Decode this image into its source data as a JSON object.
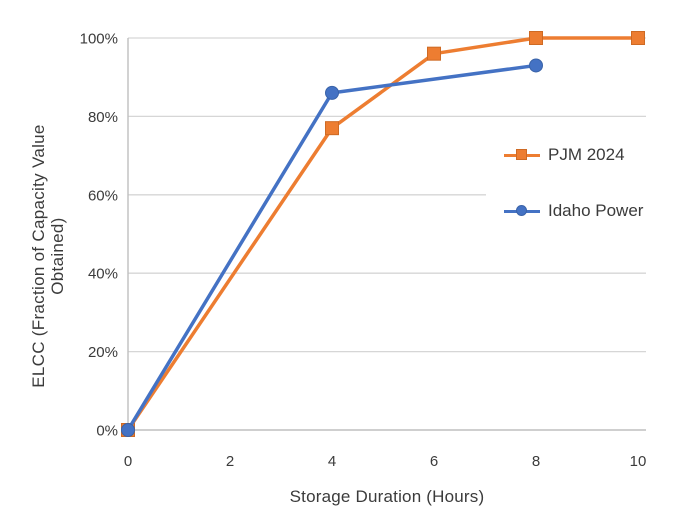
{
  "chart_data": {
    "type": "line",
    "title": "",
    "xlabel": "Storage Duration (Hours)",
    "ylabel": "ELCC (Fraction of Capacity Value Obtained)",
    "xlim": [
      0,
      10
    ],
    "ylim": [
      0,
      100
    ],
    "x_ticks": [
      0,
      2,
      4,
      6,
      8,
      10
    ],
    "y_ticks": {
      "labels": [
        "0%",
        "20%",
        "40%",
        "60%",
        "80%",
        "100%"
      ],
      "values": [
        0,
        20,
        40,
        60,
        80,
        100
      ]
    },
    "grid": "horizontal",
    "legend_position": "inside-right",
    "series": [
      {
        "name": "PJM 2024",
        "color": "#ED7D31",
        "marker_edge": "#CE6A24",
        "marker": "square",
        "x": [
          0,
          4,
          6,
          8,
          10
        ],
        "y": [
          0,
          77,
          96,
          100,
          100
        ]
      },
      {
        "name": "Idaho Power",
        "color": "#4472C4",
        "marker_edge": "#3A63A8",
        "marker": "circle",
        "x": [
          0,
          4,
          8
        ],
        "y": [
          0,
          86,
          93
        ]
      }
    ]
  },
  "axes": {
    "x_label": "Storage Duration (Hours)",
    "y_label_line1": "ELCC (Fraction of Capacity Value",
    "y_label_line2": "Obtained)"
  },
  "colors": {
    "gridline": "#D6D6D6",
    "axis_line": "#BFBFBF",
    "text": "#3b3b3b",
    "background": "#ffffff"
  }
}
